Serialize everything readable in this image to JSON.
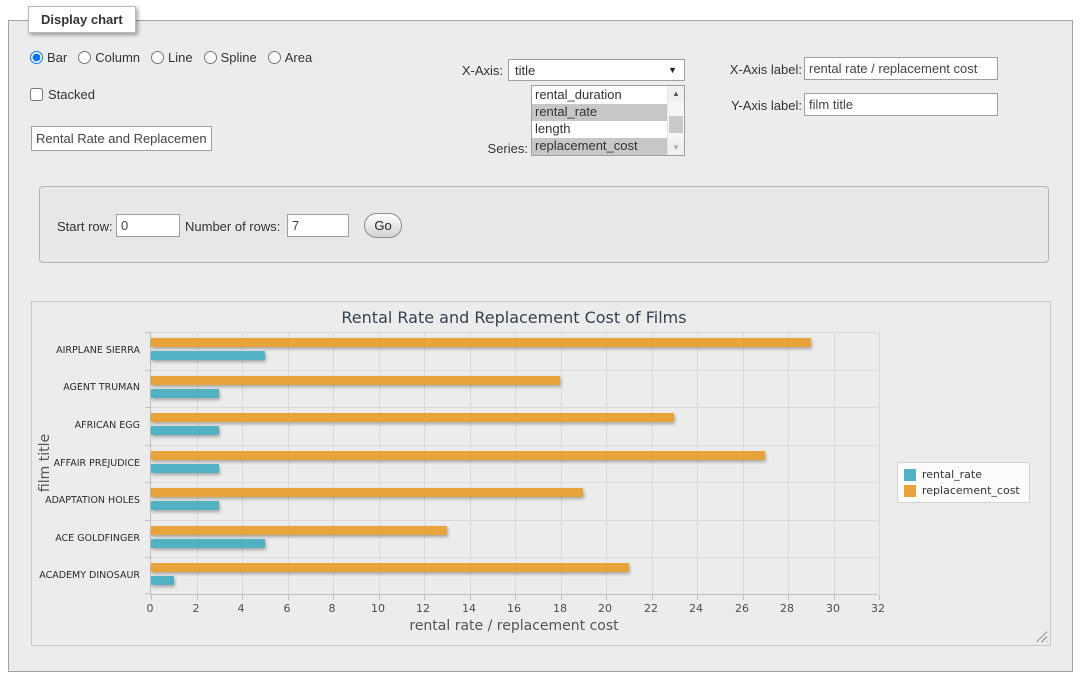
{
  "form": {
    "legend": "Display chart",
    "chart_types": [
      {
        "label": "Bar",
        "selected": true
      },
      {
        "label": "Column",
        "selected": false
      },
      {
        "label": "Line",
        "selected": false
      },
      {
        "label": "Spline",
        "selected": false
      },
      {
        "label": "Area",
        "selected": false
      }
    ],
    "stacked": {
      "label": "Stacked",
      "checked": false
    },
    "title_input": {
      "value": "Rental Rate and Replacement Cost of Films"
    },
    "x_axis": {
      "label": "X-Axis:",
      "selected": "title"
    },
    "series_select": {
      "label": "Series:",
      "options": [
        {
          "label": "rental_duration",
          "selected": false
        },
        {
          "label": "rental_rate",
          "selected": true
        },
        {
          "label": "length",
          "selected": false
        },
        {
          "label": "replacement_cost",
          "selected": true
        }
      ]
    },
    "x_axis_label": {
      "label": "X-Axis label:",
      "value": "rental rate / replacement cost"
    },
    "y_axis_label": {
      "label": "Y-Axis label:",
      "value": "film title"
    },
    "rows": {
      "start_label": "Start row:",
      "start_value": "0",
      "count_label": "Number of rows:",
      "count_value": "7",
      "go_label": "Go"
    }
  },
  "chart_data": {
    "type": "bar",
    "title": "Rental Rate and Replacement Cost of Films",
    "xlabel": "rental rate / replacement cost",
    "ylabel": "film title",
    "categories": [
      "AIRPLANE SIERRA",
      "AGENT TRUMAN",
      "AFRICAN EGG",
      "AFFAIR PREJUDICE",
      "ADAPTATION HOLES",
      "ACE GOLDFINGER",
      "ACADEMY DINOSAUR"
    ],
    "series": [
      {
        "name": "rental_rate",
        "color": "#52B2C4",
        "values": [
          4.99,
          2.99,
          2.99,
          2.99,
          2.99,
          4.99,
          0.99
        ]
      },
      {
        "name": "replacement_cost",
        "color": "#E8A33B",
        "values": [
          28.99,
          17.99,
          22.99,
          26.99,
          18.99,
          12.99,
          20.99
        ]
      }
    ],
    "xlim": [
      0,
      32
    ],
    "tick_step": 2,
    "grid": true,
    "legend_position": "right",
    "bar_order_top_to_bottom": [
      "replacement_cost",
      "rental_rate"
    ]
  }
}
